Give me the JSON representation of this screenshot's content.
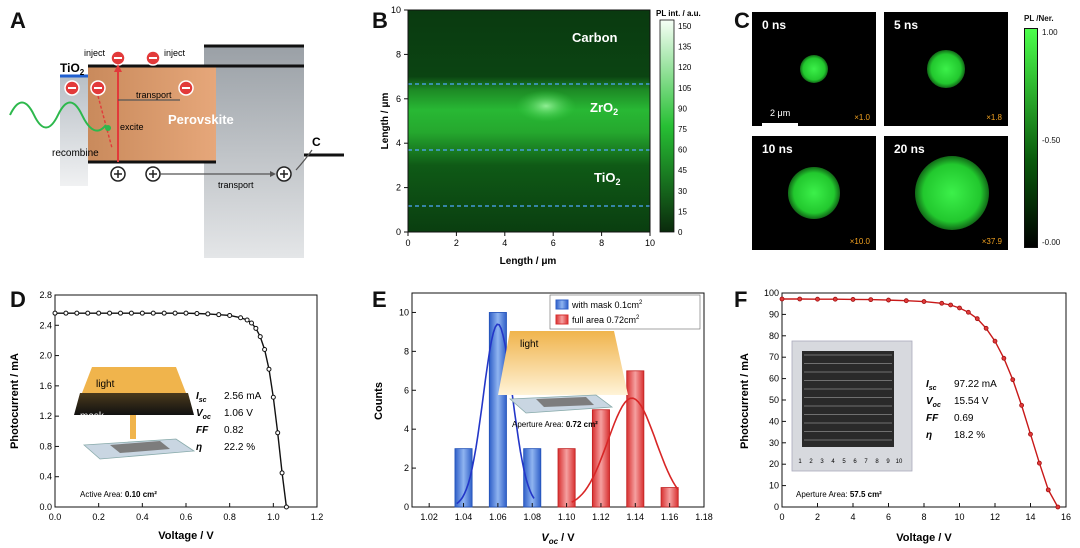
{
  "panelA": {
    "label": "A",
    "tio2": "TiO",
    "tio2_sub": "2",
    "inject_left": "inject",
    "inject_right": "inject",
    "transport_top": "transport",
    "excite": "excite",
    "perovskite": "Perovskite",
    "recombine": "recombine",
    "carbon": "C",
    "transport_bottom": "transport"
  },
  "panelB": {
    "label": "B",
    "colorbar_title": "PL int. / a.u.",
    "colorbar_ticks": [
      "150",
      "135",
      "120",
      "105",
      "90",
      "75",
      "60",
      "45",
      "30",
      "15",
      "0"
    ],
    "region_carbon": "Carbon",
    "region_zro2": "ZrO",
    "region_zro2_sub": "2",
    "region_tio2": "TiO",
    "region_tio2_sub": "2",
    "xlabel": "Length / μm",
    "ylabel": "Length / μm",
    "xticks": [
      "0",
      "2",
      "4",
      "6",
      "8",
      "10"
    ],
    "yticks": [
      "0",
      "2",
      "4",
      "6",
      "8",
      "10"
    ]
  },
  "panelC": {
    "label": "C",
    "colorbar_title": "PL /Ner.",
    "colorbar_ticks": [
      "1.00",
      "-0.50",
      "-0.00"
    ],
    "scalebar": "2 μm",
    "frames": [
      {
        "time": "0 ns",
        "mult": "×1.0",
        "spot_size": 0.25
      },
      {
        "time": "5 ns",
        "mult": "×1.8",
        "spot_size": 0.33
      },
      {
        "time": "10 ns",
        "mult": "×10.0",
        "spot_size": 0.45
      },
      {
        "time": "20 ns",
        "mult": "×37.9",
        "spot_size": 0.65
      }
    ]
  },
  "panelD": {
    "label": "D",
    "xlabel": "Voltage / V",
    "ylabel": "Photocurrent / mA",
    "xticks": [
      "0.0",
      "0.2",
      "0.4",
      "0.6",
      "0.8",
      "1.0",
      "1.2"
    ],
    "yticks": [
      "0.0",
      "0.4",
      "0.8",
      "1.2",
      "1.6",
      "2.0",
      "2.4",
      "2.8"
    ],
    "params": [
      {
        "name": "I",
        "sub": "sc",
        "value": "2.56 mA"
      },
      {
        "name": "V",
        "sub": "oc",
        "value": "1.06 V"
      },
      {
        "name": "FF",
        "sub": "",
        "value": "0.82"
      },
      {
        "name": "η",
        "sub": "",
        "value": "22.2 %"
      }
    ],
    "inset_light": "light",
    "inset_mask": "mask",
    "area_label": "Active Area:",
    "area_value": "0.10 cm²"
  },
  "panelE": {
    "label": "E",
    "xlabel": "V",
    "xlabel_sub": "oc",
    "xlabel_unit": " / V",
    "ylabel": "Counts",
    "xticks": [
      "1.02",
      "1.04",
      "1.06",
      "1.08",
      "1.10",
      "1.12",
      "1.14",
      "1.16",
      "1.18"
    ],
    "yticks": [
      "0",
      "2",
      "4",
      "6",
      "8",
      "10"
    ],
    "legend": [
      {
        "text": "with mask 0.1cm",
        "sup": "2",
        "color": "#3a6fd8"
      },
      {
        "text": "full area 0.72cm",
        "sup": "2",
        "color": "#e83030"
      }
    ],
    "inset_light": "light",
    "area_label": "Aperture Area:",
    "area_value": "0.72 cm²"
  },
  "panelF": {
    "label": "F",
    "xlabel": "Voltage / V",
    "ylabel": "Photocurrent / mA",
    "xticks": [
      "0",
      "2",
      "4",
      "6",
      "8",
      "10",
      "12",
      "14",
      "16"
    ],
    "yticks": [
      "0",
      "10",
      "20",
      "30",
      "40",
      "50",
      "60",
      "70",
      "80",
      "90",
      "100"
    ],
    "params": [
      {
        "name": "I",
        "sub": "sc",
        "value": "97.22 mA"
      },
      {
        "name": "V",
        "sub": "oc",
        "value": "15.54 V"
      },
      {
        "name": "FF",
        "sub": "",
        "value": "0.69"
      },
      {
        "name": "η",
        "sub": "",
        "value": "18.2 %"
      }
    ],
    "area_label": "Aperture Area:",
    "area_value": "57.5 cm²",
    "inset_ruler": [
      "1",
      "2",
      "3",
      "4",
      "5",
      "6",
      "7",
      "8",
      "9",
      "10"
    ]
  },
  "chart_data": [
    {
      "type": "line",
      "panel": "D",
      "xlabel": "Voltage / V",
      "ylabel": "Photocurrent / mA",
      "xlim": [
        0,
        1.2
      ],
      "ylim": [
        0,
        2.8
      ],
      "x": [
        0.0,
        0.05,
        0.1,
        0.15,
        0.2,
        0.25,
        0.3,
        0.35,
        0.4,
        0.45,
        0.5,
        0.55,
        0.6,
        0.65,
        0.7,
        0.75,
        0.8,
        0.85,
        0.88,
        0.9,
        0.92,
        0.94,
        0.96,
        0.98,
        1.0,
        1.02,
        1.04,
        1.06
      ],
      "y": [
        2.56,
        2.56,
        2.56,
        2.56,
        2.56,
        2.56,
        2.56,
        2.56,
        2.56,
        2.56,
        2.56,
        2.56,
        2.56,
        2.555,
        2.55,
        2.54,
        2.53,
        2.5,
        2.47,
        2.43,
        2.36,
        2.25,
        2.08,
        1.82,
        1.45,
        0.98,
        0.45,
        0.0
      ]
    },
    {
      "type": "bar",
      "panel": "E",
      "xlabel": "Voc / V",
      "ylabel": "Counts",
      "xlim": [
        1.01,
        1.18
      ],
      "ylim": [
        0,
        11
      ],
      "series": [
        {
          "name": "with mask 0.1cm2",
          "x": [
            1.04,
            1.06,
            1.08
          ],
          "values": [
            3,
            10,
            3
          ]
        },
        {
          "name": "full area 0.72cm2",
          "x": [
            1.1,
            1.12,
            1.14,
            1.16
          ],
          "values": [
            3,
            5,
            7,
            1
          ]
        }
      ]
    },
    {
      "type": "line",
      "panel": "F",
      "xlabel": "Voltage / V",
      "ylabel": "Photocurrent / mA",
      "xlim": [
        0,
        16
      ],
      "ylim": [
        0,
        100
      ],
      "x": [
        0,
        1,
        2,
        3,
        4,
        5,
        6,
        7,
        8,
        9,
        9.5,
        10,
        10.5,
        11,
        11.5,
        12,
        12.5,
        13,
        13.5,
        14,
        14.5,
        15,
        15.54
      ],
      "y": [
        97.2,
        97.2,
        97.1,
        97.1,
        97.0,
        96.9,
        96.7,
        96.4,
        96.0,
        95.2,
        94.4,
        93.0,
        91.0,
        88.0,
        83.5,
        77.5,
        69.5,
        59.5,
        47.5,
        34.0,
        20.5,
        8.0,
        0.0
      ]
    }
  ]
}
